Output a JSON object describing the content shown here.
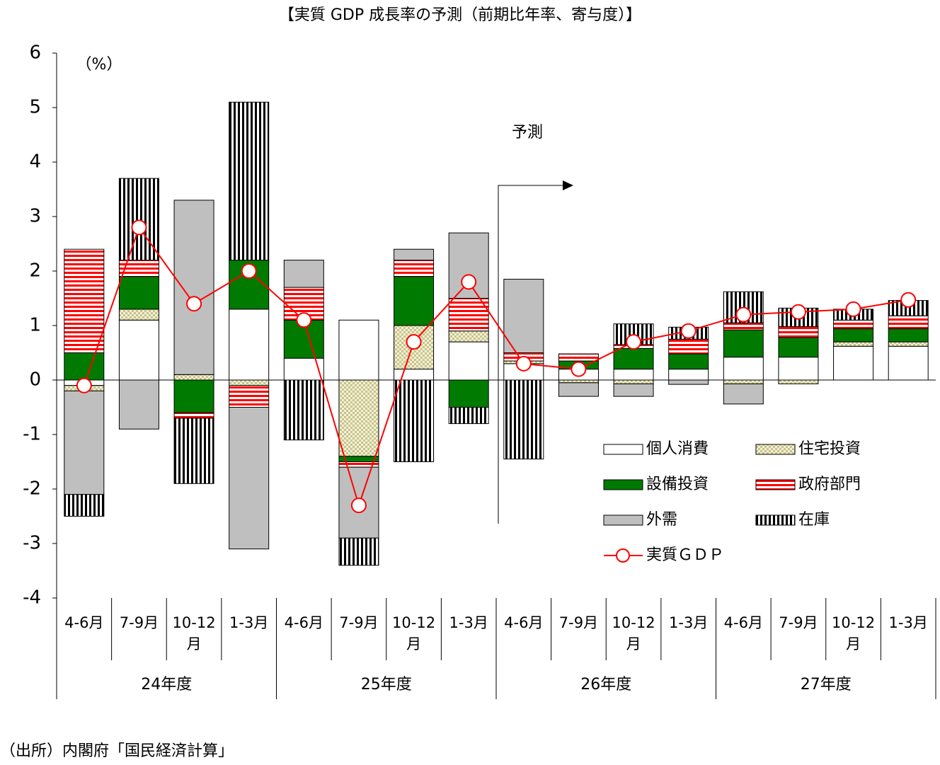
{
  "chart_data": {
    "type": "bar",
    "title": "【実質 GDP 成長率の予測（前期比年率、寄与度）】",
    "unit_label": "（%）",
    "forecast_label": "予測",
    "source": "（出所）内閣府「国民経済計算」",
    "categories": [
      "4-6月",
      "7-9月",
      "10-12月",
      "1-3月",
      "4-6月",
      "7-9月",
      "10-12月",
      "1-3月",
      "4-6月",
      "7-9月",
      "10-12月",
      "1-3月",
      "4-6月",
      "7-9月",
      "10-12月",
      "1-3月"
    ],
    "groups": [
      "24年度",
      "25年度",
      "26年度",
      "27年度"
    ],
    "ylim": [
      -4,
      6
    ],
    "yticks": [
      -4,
      -3,
      -2,
      -1,
      0,
      1,
      2,
      3,
      4,
      5,
      6
    ],
    "stacked": true,
    "series": [
      {
        "name": "個人消費",
        "color": "#ffffff",
        "pattern": "solid",
        "values": [
          -0.1,
          1.1,
          0,
          1.3,
          0.4,
          1.1,
          0.2,
          0.7,
          0.3,
          0.2,
          0.2,
          0.2,
          0.42,
          0.42,
          0.62,
          0.62
        ]
      },
      {
        "name": "住宅投資",
        "color": "#c8c48a",
        "pattern": "checker",
        "values": [
          -0.1,
          0.2,
          0.1,
          -0.1,
          0,
          -1.4,
          0.8,
          0.2,
          0.05,
          -0.05,
          -0.07,
          0,
          -0.07,
          -0.07,
          0.08,
          0.08
        ]
      },
      {
        "name": "設備投資",
        "color": "#007a00",
        "pattern": "solid",
        "values": [
          0.5,
          0.6,
          -0.6,
          0.9,
          0.7,
          -0.1,
          0.9,
          -0.5,
          0,
          0.15,
          0.38,
          0.28,
          0.5,
          0.36,
          0.24,
          0.24
        ]
      },
      {
        "name": "政府部門",
        "color": "#ff0000",
        "pattern": "hstripe",
        "values": [
          1.9,
          0.3,
          -0.1,
          -0.4,
          0.6,
          -0.1,
          0.3,
          0.6,
          0.15,
          0.13,
          0.07,
          0.27,
          0.13,
          0.2,
          0.16,
          0.24
        ]
      },
      {
        "name": "外需",
        "color": "#bfbfbf",
        "pattern": "solid",
        "values": [
          -1.9,
          -0.9,
          3.2,
          -2.6,
          0.5,
          -1.3,
          0.2,
          1.2,
          1.35,
          -0.25,
          -0.23,
          -0.08,
          -0.37,
          0,
          0,
          0
        ]
      },
      {
        "name": "在庫",
        "color": "#000000",
        "pattern": "vstripe",
        "values": [
          -0.4,
          1.5,
          -1.2,
          2.9,
          -1.1,
          -0.5,
          -1.5,
          -0.3,
          -1.45,
          0,
          0.38,
          0.22,
          0.57,
          0.34,
          0.2,
          0.28
        ]
      }
    ],
    "line": {
      "name": "実質ＧＤＰ",
      "color": "#ff0000",
      "values": [
        -0.1,
        2.8,
        1.4,
        2.0,
        1.1,
        -2.3,
        0.7,
        1.8,
        0.3,
        0.2,
        0.7,
        0.9,
        1.2,
        1.25,
        1.3,
        1.47
      ]
    }
  }
}
